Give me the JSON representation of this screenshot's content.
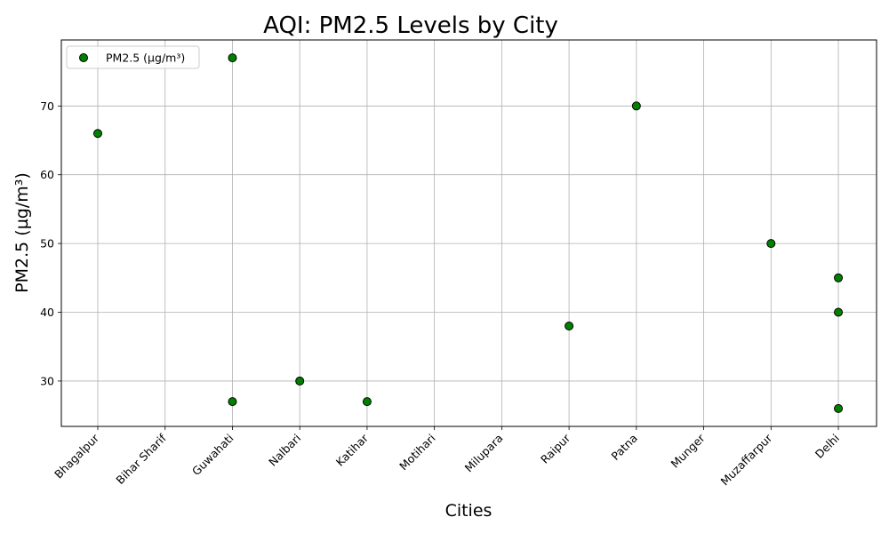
{
  "chart_data": {
    "type": "scatter",
    "title": "AQI: PM2.5 Levels by City",
    "xlabel": "Cities",
    "ylabel": "PM2.5 (µg/m³)",
    "categories": [
      "Bhagalpur",
      "Bihar Sharif",
      "Guwahati",
      "Nalbari",
      "Katihar",
      "Motihari",
      "Milupara",
      "Raipur",
      "Patna",
      "Munger",
      "Muzaffarpur",
      "Delhi"
    ],
    "ylim": [
      23.4,
      79.6
    ],
    "yticks": [
      30,
      40,
      50,
      60,
      70
    ],
    "grid": true,
    "legend_position": "top-left",
    "series": [
      {
        "name": "PM2.5 (µg/m³)",
        "color": "#008000",
        "edge_color": "#000000",
        "points": [
          {
            "x": "Bhagalpur",
            "y": 66
          },
          {
            "x": "Guwahati",
            "y": 77
          },
          {
            "x": "Guwahati",
            "y": 27
          },
          {
            "x": "Nalbari",
            "y": 30
          },
          {
            "x": "Katihar",
            "y": 27
          },
          {
            "x": "Raipur",
            "y": 38
          },
          {
            "x": "Patna",
            "y": 70
          },
          {
            "x": "Muzaffarpur",
            "y": 50
          },
          {
            "x": "Delhi",
            "y": 45
          },
          {
            "x": "Delhi",
            "y": 40
          },
          {
            "x": "Delhi",
            "y": 26
          }
        ]
      }
    ]
  }
}
